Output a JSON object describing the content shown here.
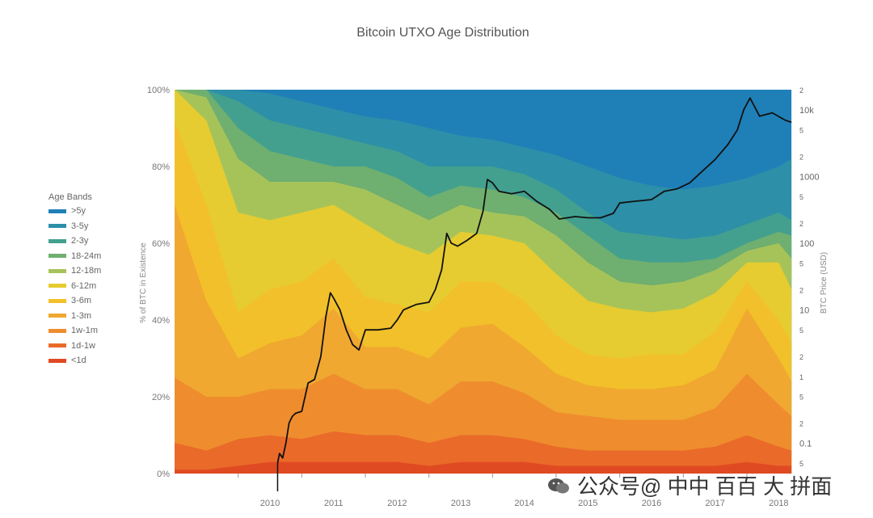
{
  "chart_data": {
    "type": "area",
    "title": "Bitcoin UTXO Age Distribution",
    "ylabel": "% of BTC in Existence",
    "y2label": "BTC Price (USD)",
    "y_ticks": [
      "0%",
      "20%",
      "40%",
      "60%",
      "80%",
      "100%"
    ],
    "x_ticks": [
      "2010",
      "2011",
      "2012",
      "2013",
      "2014",
      "2015",
      "2016",
      "2017",
      "2018"
    ],
    "y2_ticks": [
      "2",
      "10k",
      "5",
      "2",
      "1000",
      "5",
      "2",
      "100",
      "5",
      "2",
      "10",
      "5",
      "2",
      "1",
      "5",
      "2",
      "0.1",
      "5"
    ],
    "legend": {
      "title": "Age Bands",
      "position": "left",
      "items": [
        {
          "name": ">5y",
          "color": "#1f80b8"
        },
        {
          "name": "3-5y",
          "color": "#2d8fa8"
        },
        {
          "name": "2-3y",
          "color": "#43a08f"
        },
        {
          "name": "18-24m",
          "color": "#6faf6f"
        },
        {
          "name": "12-18m",
          "color": "#a6c35a"
        },
        {
          "name": "6-12m",
          "color": "#e6cc30"
        },
        {
          "name": "3-6m",
          "color": "#f2c02a"
        },
        {
          "name": "1-3m",
          "color": "#f0a830"
        },
        {
          "name": "1w-1m",
          "color": "#ef8d2e"
        },
        {
          "name": "1d-1w",
          "color": "#ea6a2a"
        },
        {
          "name": "<1d",
          "color": "#e04a22"
        }
      ]
    },
    "x_years": [
      2009.0,
      2009.5,
      2010.0,
      2010.5,
      2011.0,
      2011.5,
      2012.0,
      2012.5,
      2013.0,
      2013.5,
      2014.0,
      2014.5,
      2015.0,
      2015.5,
      2016.0,
      2016.5,
      2017.0,
      2017.5,
      2018.0,
      2018.5,
      2018.7
    ],
    "cumulative_boundaries_percent": {
      "<1d": [
        1,
        1,
        2,
        3,
        3,
        3,
        3,
        3,
        2,
        3,
        3,
        3,
        2,
        2,
        2,
        2,
        2,
        2,
        3,
        2,
        2
      ],
      "1d-1w": [
        8,
        6,
        9,
        10,
        9,
        11,
        10,
        10,
        8,
        10,
        10,
        9,
        7,
        6,
        6,
        6,
        6,
        7,
        10,
        7,
        6
      ],
      "1w-1m": [
        25,
        20,
        20,
        22,
        22,
        26,
        22,
        22,
        18,
        24,
        24,
        21,
        16,
        15,
        14,
        14,
        14,
        17,
        26,
        18,
        15
      ],
      "1-3m": [
        70,
        45,
        30,
        34,
        36,
        43,
        33,
        33,
        30,
        38,
        39,
        33,
        26,
        23,
        22,
        22,
        23,
        27,
        43,
        30,
        24
      ],
      "3-6m": [
        92,
        70,
        42,
        48,
        50,
        56,
        46,
        44,
        42,
        50,
        50,
        45,
        36,
        31,
        30,
        31,
        31,
        37,
        50,
        40,
        34
      ],
      "6-12m": [
        100,
        92,
        68,
        66,
        68,
        70,
        65,
        60,
        57,
        63,
        62,
        60,
        52,
        45,
        43,
        42,
        43,
        47,
        55,
        55,
        48
      ],
      "12-18m": [
        100,
        98,
        82,
        76,
        76,
        76,
        74,
        70,
        66,
        70,
        68,
        67,
        62,
        55,
        50,
        49,
        50,
        53,
        58,
        60,
        56
      ],
      "18-24m": [
        100,
        100,
        90,
        84,
        82,
        80,
        80,
        77,
        72,
        75,
        74,
        72,
        68,
        62,
        56,
        55,
        55,
        56,
        60,
        63,
        62
      ],
      "2-3y": [
        100,
        100,
        97,
        92,
        90,
        88,
        86,
        84,
        80,
        80,
        80,
        78,
        74,
        68,
        63,
        62,
        61,
        62,
        65,
        68,
        66
      ],
      "3-5y": [
        100,
        100,
        100,
        99,
        97,
        95,
        93,
        92,
        90,
        88,
        87,
        85,
        83,
        80,
        77,
        75,
        74,
        75,
        77,
        80,
        82
      ],
      ">5y": [
        100,
        100,
        100,
        100,
        100,
        100,
        100,
        100,
        100,
        100,
        100,
        100,
        100,
        100,
        100,
        100,
        100,
        100,
        100,
        100,
        100
      ]
    },
    "price_series": {
      "name": "BTC Price (USD)",
      "color": "#111111",
      "x": [
        2010.62,
        2010.65,
        2010.7,
        2010.75,
        2010.8,
        2010.85,
        2010.9,
        2011.0,
        2011.1,
        2011.2,
        2011.3,
        2011.38,
        2011.45,
        2011.5,
        2011.6,
        2011.7,
        2011.8,
        2011.9,
        2012.0,
        2012.1,
        2012.2,
        2012.4,
        2012.5,
        2012.6,
        2012.8,
        2013.0,
        2013.1,
        2013.2,
        2013.28,
        2013.35,
        2013.45,
        2013.6,
        2013.75,
        2013.85,
        2013.92,
        2014.0,
        2014.1,
        2014.3,
        2014.5,
        2014.7,
        2014.9,
        2015.05,
        2015.3,
        2015.5,
        2015.7,
        2015.9,
        2016.0,
        2016.2,
        2016.5,
        2016.7,
        2016.9,
        2017.1,
        2017.3,
        2017.5,
        2017.7,
        2017.85,
        2017.95,
        2018.05,
        2018.2,
        2018.4,
        2018.6,
        2018.7
      ],
      "y": [
        0.05,
        0.07,
        0.06,
        0.1,
        0.2,
        0.25,
        0.28,
        0.3,
        0.8,
        0.9,
        2.0,
        8,
        18,
        15,
        10,
        5,
        3,
        2.5,
        5,
        5,
        5,
        5.3,
        7,
        10,
        12,
        13,
        20,
        40,
        140,
        100,
        90,
        110,
        140,
        300,
        900,
        800,
        600,
        550,
        600,
        420,
        320,
        230,
        250,
        240,
        240,
        280,
        400,
        420,
        450,
        600,
        650,
        800,
        1200,
        1800,
        3000,
        5000,
        10000,
        15000,
        8000,
        9000,
        7000,
        6500
      ]
    },
    "ylim": [
      0,
      100
    ],
    "xlim": [
      2009.0,
      2018.75
    ],
    "y2_scale": "log"
  },
  "watermark": "公众号@ 中中 百百 大 拼面"
}
